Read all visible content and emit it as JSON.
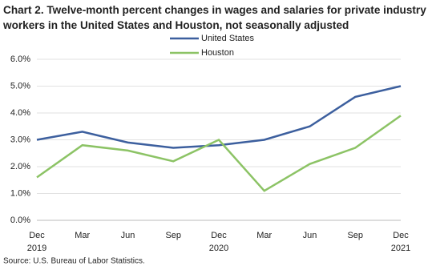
{
  "chart_data": {
    "type": "line",
    "title": "Chart 2. Twelve-month percent changes in wages and salaries for private industry workers in the United States and Houston, not seasonally adjusted",
    "source": "Source: U.S. Bureau of Labor Statistics.",
    "categories": [
      "Dec\n2019",
      "Mar",
      "Jun",
      "Sep",
      "Dec\n2020",
      "Mar",
      "Jun",
      "Sep",
      "Dec\n2021"
    ],
    "series": [
      {
        "name": "United States",
        "color": "#3c5f9e",
        "values": [
          3.0,
          3.3,
          2.9,
          2.7,
          2.8,
          3.0,
          3.5,
          4.6,
          5.0
        ]
      },
      {
        "name": "Houston",
        "color": "#8cc365",
        "values": [
          1.6,
          2.8,
          2.6,
          2.2,
          3.0,
          1.1,
          2.1,
          2.7,
          3.9
        ]
      }
    ],
    "ylim": [
      0,
      6
    ],
    "yticks": [
      {
        "value": 0,
        "label": "0.0%"
      },
      {
        "value": 1,
        "label": "1.0%"
      },
      {
        "value": 2,
        "label": "2.0%"
      },
      {
        "value": 3,
        "label": "3.0%"
      },
      {
        "value": 4,
        "label": "4.0%"
      },
      {
        "value": 5,
        "label": "5.0%"
      },
      {
        "value": 6,
        "label": "6.0%"
      }
    ],
    "grid": true
  }
}
